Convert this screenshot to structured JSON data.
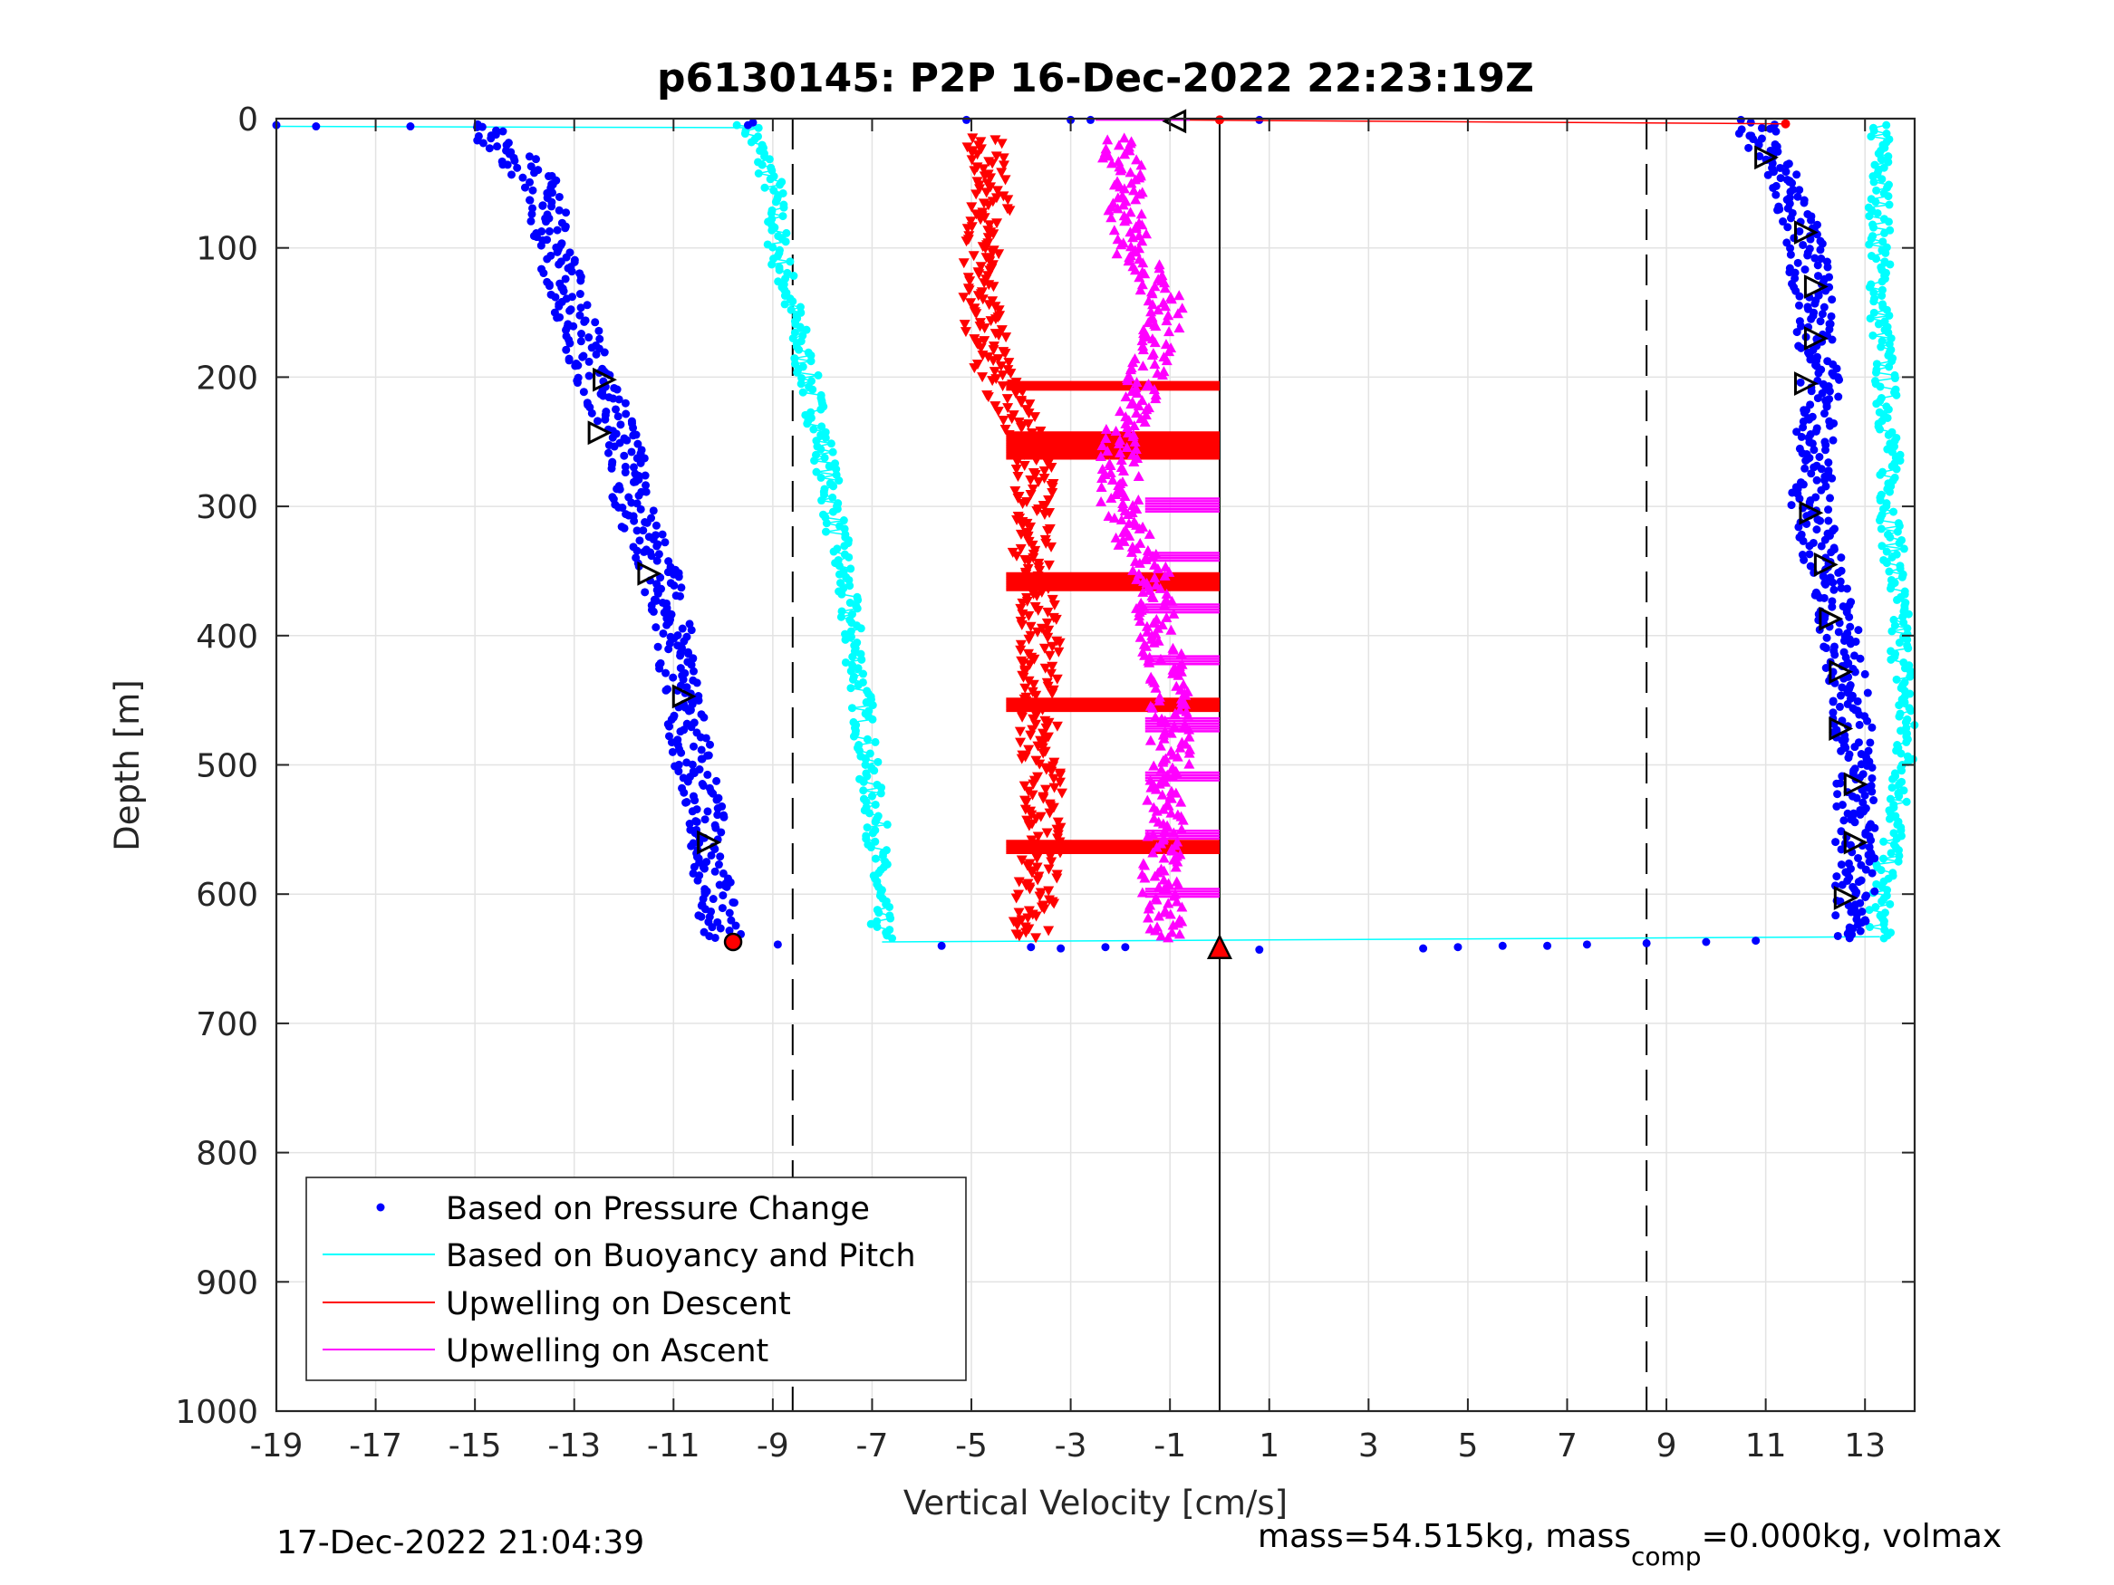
{
  "chart_data": {
    "type": "scatter",
    "title": "p6130145: P2P 16-Dec-2022 22:23:19Z",
    "xlabel": "Vertical Velocity [cm/s]",
    "ylabel": "Depth [m]",
    "xlim": [
      -19,
      14
    ],
    "ylim": [
      0,
      1000
    ],
    "y_reversed": true,
    "grid": "on",
    "x_ticks": [
      -19,
      -17,
      -15,
      -13,
      -11,
      -9,
      -7,
      -5,
      -3,
      -1,
      1,
      3,
      5,
      7,
      9,
      11,
      13
    ],
    "y_ticks": [
      0,
      100,
      200,
      300,
      400,
      500,
      600,
      700,
      800,
      900,
      1000
    ],
    "x_tick_labels": [
      "-19",
      "-17",
      "-15",
      "-13",
      "-11",
      "-9",
      "-7",
      "-5",
      "-3",
      "-1",
      "1",
      "3",
      "5",
      "7",
      "9",
      "11",
      "13"
    ],
    "y_tick_labels": [
      "0",
      "100",
      "200",
      "300",
      "400",
      "500",
      "600",
      "700",
      "800",
      "900",
      "1000"
    ],
    "legend": {
      "placement": "bottom-left",
      "entries": [
        {
          "label": "Based on Pressure Change",
          "color": "#0000ff",
          "marker": "dot"
        },
        {
          "label": "Based on Buoyancy and Pitch",
          "color": "#00ffff",
          "marker": "line"
        },
        {
          "label": "Upwelling on Descent",
          "color": "#ff0000",
          "marker": "line"
        },
        {
          "label": "Upwelling on Ascent",
          "color": "#ff00ff",
          "marker": "line"
        }
      ]
    },
    "reference_lines": {
      "dashed_x": [
        -8.6,
        8.6
      ],
      "solid_x": [
        0
      ]
    },
    "series": [
      {
        "name": "Based on Pressure Change",
        "color": "#0000ff",
        "descent": {
          "depth": [
            5,
            25,
            50,
            100,
            150,
            200,
            250,
            300,
            350,
            400,
            450,
            500,
            550,
            600,
            635
          ],
          "velocity": [
            -15,
            -14.3,
            -13.7,
            -13.4,
            -13.0,
            -12.6,
            -12.0,
            -11.8,
            -11.3,
            -11.0,
            -10.8,
            -10.6,
            -10.3,
            -10.2,
            -10.0
          ]
        },
        "ascent": {
          "depth": [
            635,
            600,
            550,
            500,
            450,
            400,
            350,
            300,
            250,
            200,
            150,
            100,
            50,
            25,
            5
          ],
          "velocity": [
            12.8,
            12.8,
            12.8,
            12.8,
            12.7,
            12.5,
            12.2,
            11.9,
            12.0,
            12.1,
            12.0,
            11.8,
            11.4,
            11.0,
            10.8
          ]
        }
      },
      {
        "name": "Based on Buoyancy and Pitch",
        "color": "#00ffff",
        "descent": {
          "depth": [
            5,
            50,
            100,
            150,
            200,
            250,
            300,
            350,
            400,
            450,
            500,
            550,
            600,
            635
          ],
          "velocity": [
            -9.5,
            -9.0,
            -8.9,
            -8.6,
            -8.3,
            -8.0,
            -7.8,
            -7.6,
            -7.4,
            -7.2,
            -7.1,
            -6.9,
            -6.9,
            -6.8
          ]
        },
        "ascent": {
          "depth": [
            635,
            600,
            550,
            500,
            450,
            400,
            350,
            300,
            250,
            200,
            150,
            100,
            50,
            5
          ],
          "velocity": [
            13.3,
            13.3,
            13.6,
            13.8,
            13.8,
            13.7,
            13.6,
            13.5,
            13.5,
            13.4,
            13.3,
            13.3,
            13.3,
            13.3
          ]
        }
      },
      {
        "name": "Upwelling on Descent",
        "color": "#ff0000",
        "depth": [
          15,
          50,
          100,
          150,
          200,
          250,
          300,
          350,
          400,
          450,
          500,
          550,
          600,
          635
        ],
        "velocity": [
          -4.8,
          -4.5,
          -4.8,
          -4.8,
          -4.5,
          -3.8,
          -3.7,
          -3.8,
          -3.6,
          -3.7,
          -3.6,
          -3.5,
          -3.7,
          -3.8
        ]
      },
      {
        "name": "Upwelling on Ascent",
        "color": "#ff00ff",
        "depth": [
          15,
          50,
          100,
          150,
          200,
          250,
          300,
          350,
          400,
          450,
          500,
          550,
          600,
          635
        ],
        "velocity": [
          -2.0,
          -1.9,
          -1.8,
          -1.0,
          -1.5,
          -2.0,
          -2.0,
          -1.4,
          -1.2,
          -1.0,
          -1.0,
          -1.1,
          -1.2,
          -1.0
        ]
      }
    ]
  },
  "footer": {
    "timestamp": "17-Dec-2022 21:04:39",
    "mass_text_1": "mass=54.515kg, mass",
    "mass_sub": "comp",
    "mass_text_2": "=0.000kg, volmax"
  }
}
